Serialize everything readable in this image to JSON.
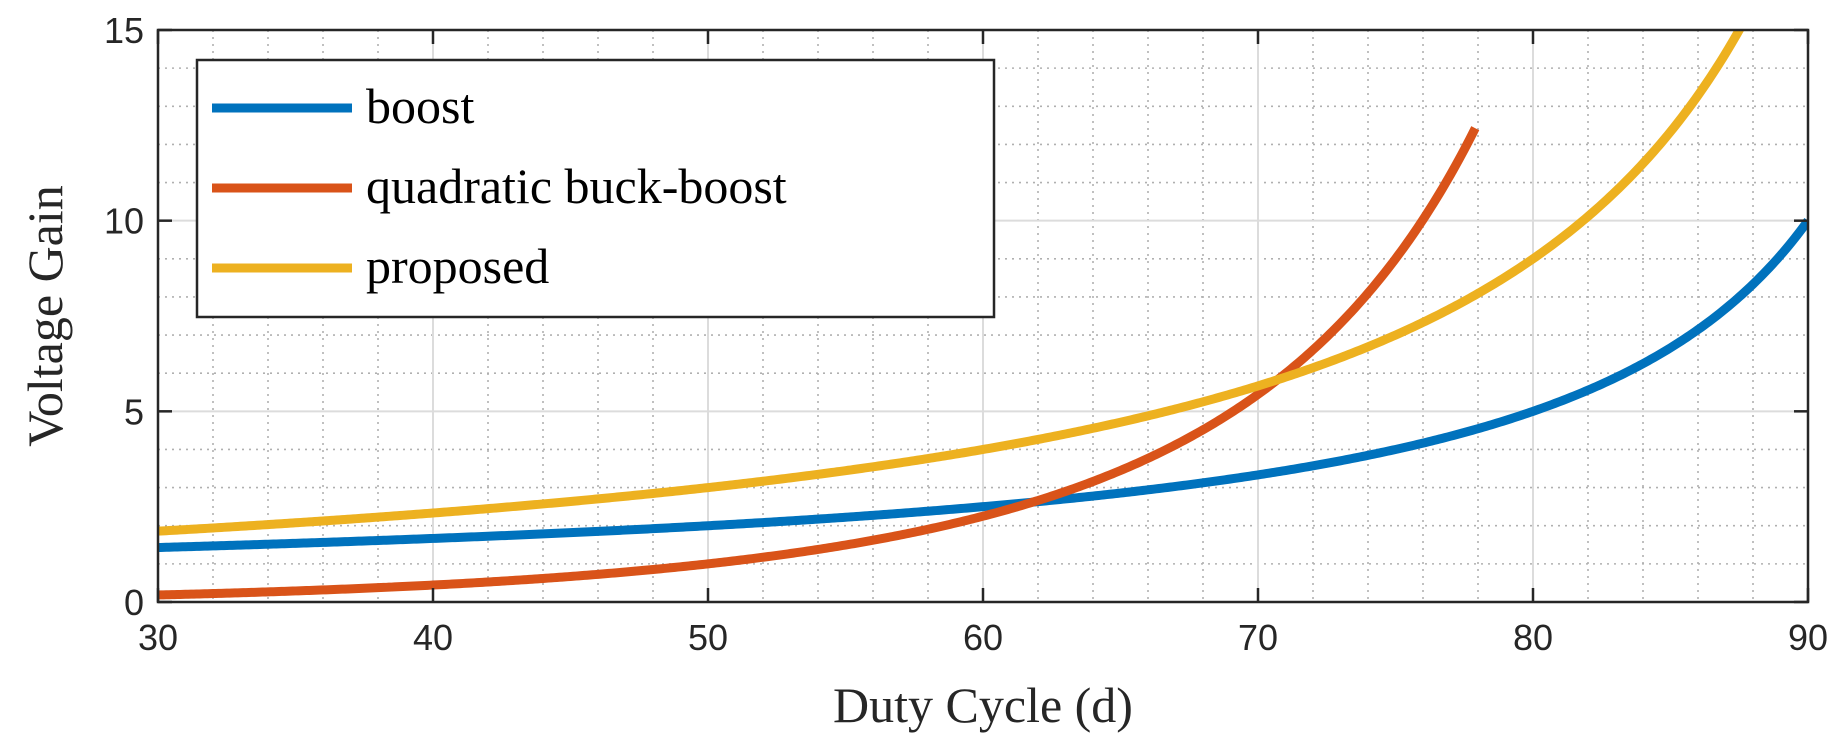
{
  "chart_data": {
    "type": "line",
    "title": "",
    "xlabel": "Duty Cycle (d)",
    "ylabel": "Voltage Gain",
    "xlim": [
      30,
      90
    ],
    "ylim": [
      0,
      15
    ],
    "xticks": [
      30,
      40,
      50,
      60,
      70,
      80,
      90
    ],
    "yticks": [
      0,
      5,
      10,
      15
    ],
    "xtick_labels": [
      "30",
      "40",
      "50",
      "60",
      "70",
      "80",
      "90"
    ],
    "ytick_labels": [
      "0",
      "5",
      "10",
      "15"
    ],
    "grid": true,
    "minor_grid": true,
    "legend_position": "top-left",
    "series": [
      {
        "name": "boost",
        "color": "#0072BD",
        "formula": "1/(1-d)",
        "x": [
          30,
          35,
          40,
          45,
          50,
          55,
          60,
          65,
          70,
          75,
          80,
          85,
          90
        ],
        "y": [
          1.43,
          1.54,
          1.67,
          1.82,
          2.0,
          2.22,
          2.5,
          2.86,
          3.33,
          4.0,
          5.0,
          6.67,
          10.0
        ]
      },
      {
        "name": "quadratic buck-boost",
        "color": "#D95319",
        "formula": "d^2/(1-d)^2",
        "x": [
          30,
          35,
          40,
          45,
          50,
          55,
          60,
          62,
          65,
          70,
          72,
          75,
          77.3
        ],
        "y": [
          0.18,
          0.29,
          0.44,
          0.67,
          1.0,
          1.49,
          2.25,
          2.66,
          3.45,
          5.44,
          6.61,
          9.0,
          11.58
        ]
      },
      {
        "name": "proposed",
        "color": "#EDB120",
        "formula": "(1+d)/(1-d)",
        "x": [
          30,
          35,
          40,
          45,
          50,
          55,
          60,
          65,
          70,
          75,
          80,
          85,
          87.5
        ],
        "y": [
          1.86,
          2.08,
          2.33,
          2.64,
          3.0,
          3.44,
          4.0,
          4.71,
          5.67,
          7.0,
          9.0,
          12.33,
          15.0
        ]
      }
    ]
  }
}
